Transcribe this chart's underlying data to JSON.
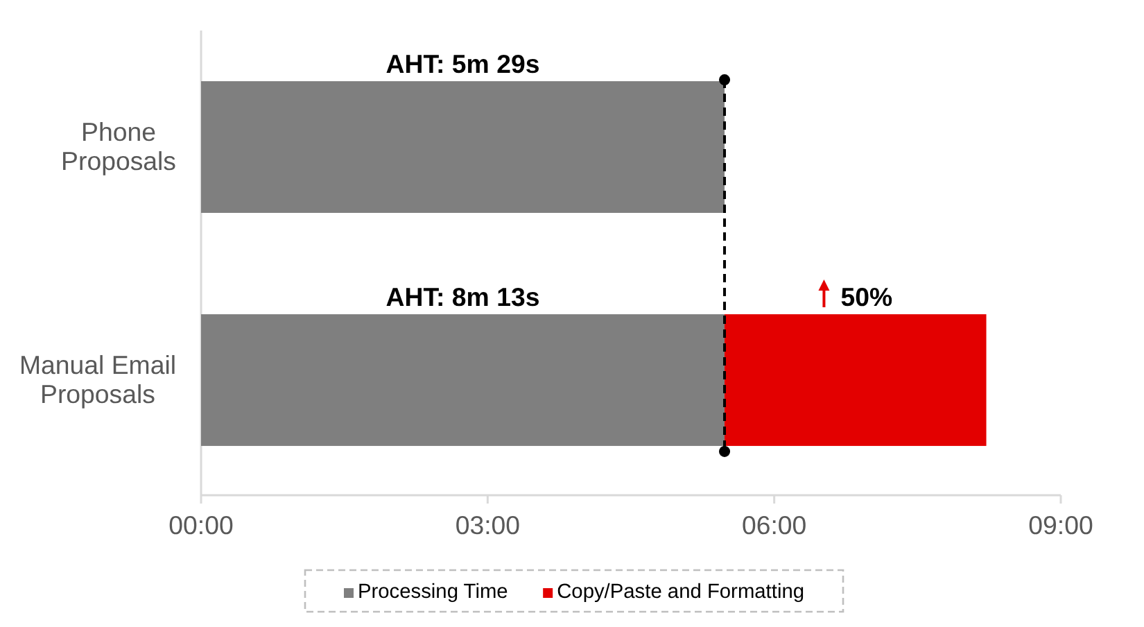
{
  "chart_data": {
    "type": "bar",
    "orientation": "horizontal",
    "stacked": true,
    "categories": [
      "Phone Proposals",
      "Manual Email Proposals"
    ],
    "series": [
      {
        "name": "Processing Time",
        "color": "#7f7f7f",
        "values": [
          5.48,
          5.48
        ]
      },
      {
        "name": "Copy/Paste and Formatting",
        "color": "#e30000",
        "values": [
          null,
          2.74
        ]
      }
    ],
    "xlim": [
      0,
      9
    ],
    "xticks": [
      {
        "value": 0,
        "label": "00:00"
      },
      {
        "value": 3,
        "label": "03:00"
      },
      {
        "value": 6,
        "label": "06:00"
      },
      {
        "value": 9,
        "label": "09:00"
      }
    ],
    "ref_lines": [
      {
        "axis": "x",
        "value": 5.48,
        "color": "#000000",
        "line_style": "dashed"
      }
    ],
    "annotations": [
      "AHT: 5m 29s",
      "AHT: 8m 13s",
      "50%"
    ],
    "legend": "bottom"
  }
}
